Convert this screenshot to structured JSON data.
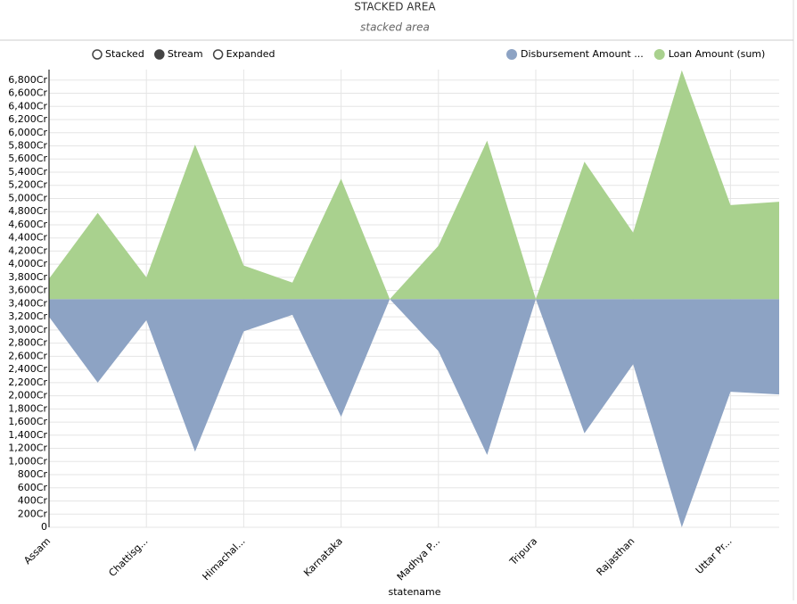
{
  "chart_data": {
    "type": "stream",
    "title": "STACKED AREA",
    "subtitle": "stacked area",
    "x_label": "statename",
    "controls": [
      "Stacked",
      "Stream",
      "Expanded"
    ],
    "selected_control": 1,
    "categories": [
      "Assam",
      null,
      "Chattisg...",
      null,
      "Himachal...",
      null,
      "Karnataka",
      null,
      "Madhya P...",
      null,
      "Tripura",
      null,
      "Rajasthan",
      null,
      "Uttar Pr...",
      null
    ],
    "series": [
      {
        "name": "Disbursement Amount ...",
        "color": "#8da3c4",
        "values": [
          270,
          1270,
          320,
          2320,
          490,
          240,
          1790,
          0,
          790,
          2370,
          0,
          2040,
          990,
          3470,
          1410,
          1450
        ]
      },
      {
        "name": "Loan Amount (sum)",
        "color": "#a9d18e",
        "values": [
          310,
          1310,
          330,
          2350,
          510,
          250,
          1830,
          0,
          810,
          2410,
          0,
          2090,
          1010,
          3480,
          1430,
          1480
        ]
      }
    ],
    "ylim": [
      0,
      6960
    ],
    "yticks": [
      0,
      {
        "value": 200,
        "label": "200Cr"
      },
      {
        "value": 400,
        "label": "400Cr"
      },
      {
        "value": 600,
        "label": "600Cr"
      },
      {
        "value": 800,
        "label": "800Cr"
      },
      {
        "value": 1000,
        "label": "1,000Cr"
      },
      {
        "value": 1200,
        "label": "1,200Cr"
      },
      {
        "value": 1400,
        "label": "1,400Cr"
      },
      {
        "value": 1600,
        "label": "1,600Cr"
      },
      {
        "value": 1800,
        "label": "1,800Cr"
      },
      {
        "value": 2000,
        "label": "2,000Cr"
      },
      {
        "value": 2200,
        "label": "2,200Cr"
      },
      {
        "value": 2400,
        "label": "2,400Cr"
      },
      {
        "value": 2600,
        "label": "2,600Cr"
      },
      {
        "value": 2800,
        "label": "2,800Cr"
      },
      {
        "value": 3000,
        "label": "3,000Cr"
      },
      {
        "value": 3200,
        "label": "3,200Cr"
      },
      {
        "value": 3400,
        "label": "3,400Cr"
      },
      {
        "value": 3600,
        "label": "3,600Cr"
      },
      {
        "value": 3800,
        "label": "3,800Cr"
      },
      {
        "value": 4000,
        "label": "4,000Cr"
      },
      {
        "value": 4200,
        "label": "4,200Cr"
      },
      {
        "value": 4400,
        "label": "4,400Cr"
      },
      {
        "value": 4600,
        "label": "4,600Cr"
      },
      {
        "value": 4800,
        "label": "4,800Cr"
      },
      {
        "value": 5000,
        "label": "5,000Cr"
      },
      {
        "value": 5200,
        "label": "5,200Cr"
      },
      {
        "value": 5400,
        "label": "5,400Cr"
      },
      {
        "value": 5600,
        "label": "5,600Cr"
      },
      {
        "value": 5800,
        "label": "5,800Cr"
      },
      {
        "value": 6000,
        "label": "6,000Cr"
      },
      {
        "value": 6200,
        "label": "6,200Cr"
      },
      {
        "value": 6400,
        "label": "6,400Cr"
      },
      {
        "value": 6600,
        "label": "6,600Cr"
      },
      {
        "value": 6800,
        "label": "6,800Cr"
      }
    ],
    "grid": true
  }
}
